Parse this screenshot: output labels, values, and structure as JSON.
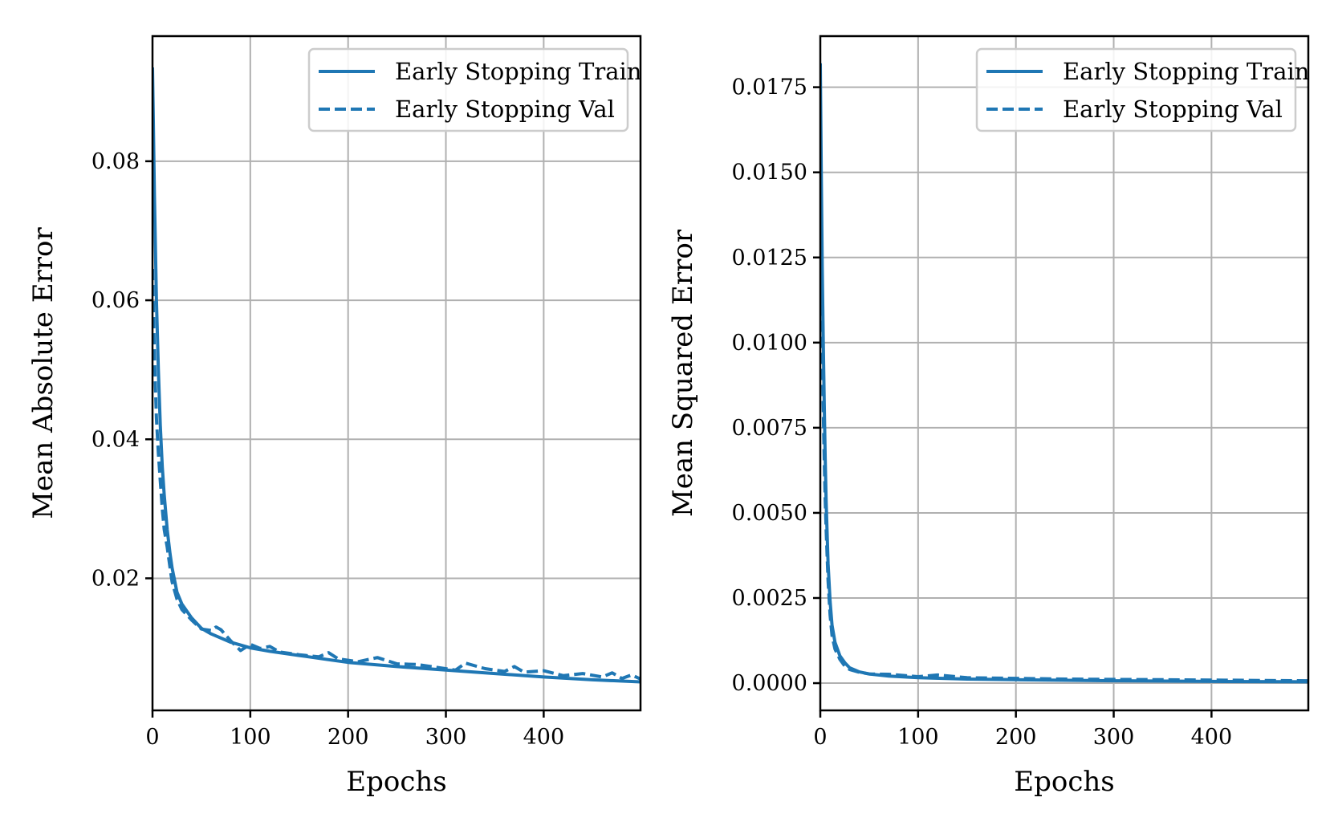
{
  "chart_data": [
    {
      "type": "line",
      "xlabel": "Epochs",
      "ylabel": "Mean Absolute Error",
      "xlim": [
        0,
        499
      ],
      "ylim": [
        0.001,
        0.098
      ],
      "grid": true,
      "legend_position": "top-right",
      "xticks": [
        0,
        100,
        200,
        300,
        400
      ],
      "xtick_labels": [
        "0",
        "100",
        "200",
        "300",
        "400"
      ],
      "yticks": [
        0.02,
        0.04,
        0.06,
        0.08
      ],
      "ytick_labels": [
        "0.02",
        "0.04",
        "0.06",
        "0.08"
      ],
      "series": [
        {
          "name": "Early Stopping Train",
          "style": "solid",
          "color": "#1f77b4",
          "x": [
            0,
            2,
            4,
            6,
            8,
            10,
            12,
            15,
            18,
            20,
            25,
            30,
            40,
            50,
            60,
            80,
            100,
            120,
            150,
            180,
            200,
            250,
            300,
            350,
            400,
            450,
            499
          ],
          "y": [
            0.0935,
            0.075,
            0.06,
            0.05,
            0.042,
            0.036,
            0.032,
            0.027,
            0.0235,
            0.0215,
            0.018,
            0.0163,
            0.0143,
            0.0128,
            0.012,
            0.0108,
            0.01,
            0.0095,
            0.0089,
            0.0083,
            0.0079,
            0.0073,
            0.0068,
            0.0063,
            0.0058,
            0.0054,
            0.0051
          ]
        },
        {
          "name": "Early Stopping Val",
          "style": "dashed",
          "color": "#1f77b4",
          "x": [
            0,
            2,
            4,
            6,
            8,
            10,
            12,
            15,
            18,
            20,
            25,
            30,
            40,
            50,
            60,
            65,
            70,
            80,
            90,
            100,
            110,
            120,
            130,
            150,
            170,
            180,
            190,
            210,
            230,
            250,
            270,
            290,
            310,
            320,
            340,
            360,
            370,
            380,
            400,
            420,
            440,
            460,
            470,
            480,
            490,
            499
          ],
          "y": [
            0.0645,
            0.052,
            0.043,
            0.038,
            0.034,
            0.03,
            0.027,
            0.0245,
            0.0215,
            0.0195,
            0.017,
            0.0155,
            0.014,
            0.0127,
            0.0125,
            0.013,
            0.0126,
            0.011,
            0.0096,
            0.0105,
            0.0099,
            0.0102,
            0.0094,
            0.009,
            0.0087,
            0.0093,
            0.0084,
            0.008,
            0.0086,
            0.0077,
            0.0076,
            0.0072,
            0.0068,
            0.0078,
            0.007,
            0.0066,
            0.0073,
            0.0065,
            0.0067,
            0.006,
            0.0063,
            0.0058,
            0.0064,
            0.0056,
            0.0061,
            0.0055
          ]
        }
      ]
    },
    {
      "type": "line",
      "xlabel": "Epochs",
      "ylabel": "Mean Squared Error",
      "xlim": [
        0,
        499
      ],
      "ylim": [
        -0.0008,
        0.019
      ],
      "grid": true,
      "legend_position": "top-right",
      "xticks": [
        0,
        100,
        200,
        300,
        400
      ],
      "xtick_labels": [
        "0",
        "100",
        "200",
        "300",
        "400"
      ],
      "yticks": [
        0.0,
        0.0025,
        0.005,
        0.0075,
        0.01,
        0.0125,
        0.015,
        0.0175
      ],
      "ytick_labels": [
        "0.0000",
        "0.0025",
        "0.0050",
        "0.0075",
        "0.0100",
        "0.0125",
        "0.0150",
        "0.0175"
      ],
      "series": [
        {
          "name": "Early Stopping Train",
          "style": "solid",
          "color": "#1f77b4",
          "x": [
            0,
            1,
            2,
            3,
            4,
            5,
            6,
            8,
            10,
            12,
            15,
            20,
            25,
            30,
            40,
            50,
            70,
            100,
            150,
            200,
            300,
            400,
            499
          ],
          "y": [
            0.0182,
            0.015,
            0.0122,
            0.01,
            0.0082,
            0.0066,
            0.0053,
            0.0035,
            0.0024,
            0.0017,
            0.0012,
            0.0008,
            0.0006,
            0.00045,
            0.00033,
            0.00027,
            0.00021,
            0.00016,
            0.00012,
            0.0001,
            7e-05,
            5e-05,
            4e-05
          ]
        },
        {
          "name": "Early Stopping Val",
          "style": "dashed",
          "color": "#1f77b4",
          "x": [
            0,
            1,
            2,
            3,
            4,
            5,
            6,
            8,
            10,
            12,
            15,
            20,
            25,
            30,
            40,
            50,
            70,
            100,
            120,
            150,
            200,
            250,
            300,
            350,
            400,
            450,
            499
          ],
          "y": [
            0.013,
            0.0112,
            0.0095,
            0.008,
            0.0066,
            0.0054,
            0.0045,
            0.003,
            0.002,
            0.0014,
            0.001,
            0.0007,
            0.0005,
            0.0004,
            0.00032,
            0.00027,
            0.00026,
            0.00019,
            0.00024,
            0.00016,
            0.00014,
            0.00012,
            0.00011,
            0.0001,
            9e-05,
            8e-05,
            7e-05
          ]
        }
      ]
    }
  ]
}
